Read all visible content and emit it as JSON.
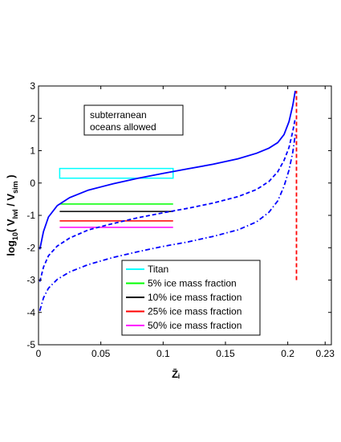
{
  "chart_data": {
    "type": "line",
    "xlim": [
      0,
      0.235
    ],
    "ylim": [
      -5,
      3
    ],
    "xticks": [
      {
        "value": 0,
        "label": "0"
      },
      {
        "value": 0.05,
        "label": "0.05"
      },
      {
        "value": 0.1,
        "label": "0.1"
      },
      {
        "value": 0.15,
        "label": "0.15"
      },
      {
        "value": 0.2,
        "label": "0.2"
      },
      {
        "value": 0.23,
        "label": "0.23"
      }
    ],
    "yticks": [
      -5,
      -4,
      -3,
      -2,
      -1,
      0,
      1,
      2,
      3
    ],
    "xlabel": "Z̄ᵢ",
    "ylabel": {
      "pre": "log",
      "pre_sub": "10",
      "mid1": "( V",
      "sub1": "lwl",
      "mid2": " / V",
      "sub2": "sim",
      "post": " )"
    },
    "annotation": {
      "lines": [
        "subterranean",
        "oceans allowed"
      ]
    },
    "grid": false,
    "legend_position": "bottom-center",
    "curves": [
      {
        "style": "solid",
        "color": "#0000ff",
        "points": [
          [
            0.001,
            -2.05
          ],
          [
            0.004,
            -1.5
          ],
          [
            0.008,
            -1.05
          ],
          [
            0.015,
            -0.7
          ],
          [
            0.025,
            -0.45
          ],
          [
            0.04,
            -0.22
          ],
          [
            0.06,
            -0.02
          ],
          [
            0.08,
            0.15
          ],
          [
            0.1,
            0.3
          ],
          [
            0.12,
            0.44
          ],
          [
            0.14,
            0.58
          ],
          [
            0.16,
            0.75
          ],
          [
            0.175,
            0.92
          ],
          [
            0.185,
            1.08
          ],
          [
            0.192,
            1.25
          ],
          [
            0.197,
            1.5
          ],
          [
            0.201,
            1.9
          ],
          [
            0.204,
            2.4
          ],
          [
            0.206,
            2.85
          ]
        ]
      },
      {
        "style": "dashed",
        "color": "#0000ff",
        "points": [
          [
            0.001,
            -3.05
          ],
          [
            0.004,
            -2.6
          ],
          [
            0.008,
            -2.25
          ],
          [
            0.015,
            -1.95
          ],
          [
            0.025,
            -1.7
          ],
          [
            0.04,
            -1.45
          ],
          [
            0.06,
            -1.25
          ],
          [
            0.08,
            -1.07
          ],
          [
            0.1,
            -0.92
          ],
          [
            0.12,
            -0.78
          ],
          [
            0.14,
            -0.62
          ],
          [
            0.16,
            -0.42
          ],
          [
            0.175,
            -0.2
          ],
          [
            0.185,
            0.05
          ],
          [
            0.192,
            0.35
          ],
          [
            0.197,
            0.7
          ],
          [
            0.201,
            1.1
          ],
          [
            0.204,
            1.6
          ],
          [
            0.206,
            2.0
          ]
        ]
      },
      {
        "style": "dashdot",
        "color": "#0000ff",
        "points": [
          [
            0.001,
            -3.95
          ],
          [
            0.004,
            -3.55
          ],
          [
            0.008,
            -3.25
          ],
          [
            0.015,
            -2.98
          ],
          [
            0.025,
            -2.75
          ],
          [
            0.04,
            -2.52
          ],
          [
            0.06,
            -2.3
          ],
          [
            0.08,
            -2.12
          ],
          [
            0.1,
            -1.96
          ],
          [
            0.12,
            -1.82
          ],
          [
            0.14,
            -1.65
          ],
          [
            0.16,
            -1.45
          ],
          [
            0.175,
            -1.2
          ],
          [
            0.185,
            -0.9
          ],
          [
            0.192,
            -0.55
          ],
          [
            0.197,
            -0.1
          ],
          [
            0.201,
            0.4
          ],
          [
            0.204,
            0.95
          ],
          [
            0.206,
            1.5
          ]
        ]
      },
      {
        "style": "dashed",
        "color": "#ff0000",
        "points": [
          [
            0.207,
            -3.0
          ],
          [
            0.207,
            2.85
          ]
        ]
      }
    ],
    "titan_box": {
      "x": [
        0.017,
        0.108
      ],
      "y": [
        0.15,
        0.45
      ],
      "color": "#00ffff"
    },
    "fraction_lines": [
      {
        "x": [
          0.017,
          0.108
        ],
        "y": -0.65,
        "color": "#00ff00"
      },
      {
        "x": [
          0.017,
          0.108
        ],
        "y": -0.88,
        "color": "#000000"
      },
      {
        "x": [
          0.017,
          0.108
        ],
        "y": -1.17,
        "color": "#ff0000"
      },
      {
        "x": [
          0.017,
          0.108
        ],
        "y": -1.37,
        "color": "#ff00ff"
      }
    ],
    "legend": [
      {
        "label": "Titan",
        "color": "#00ffff"
      },
      {
        "label": "5% ice mass fraction",
        "color": "#00ff00"
      },
      {
        "label": "10% ice mass fraction",
        "color": "#000000"
      },
      {
        "label": "25% ice mass fraction",
        "color": "#ff0000"
      },
      {
        "label": "50% ice mass fraction",
        "color": "#ff00ff"
      }
    ]
  }
}
